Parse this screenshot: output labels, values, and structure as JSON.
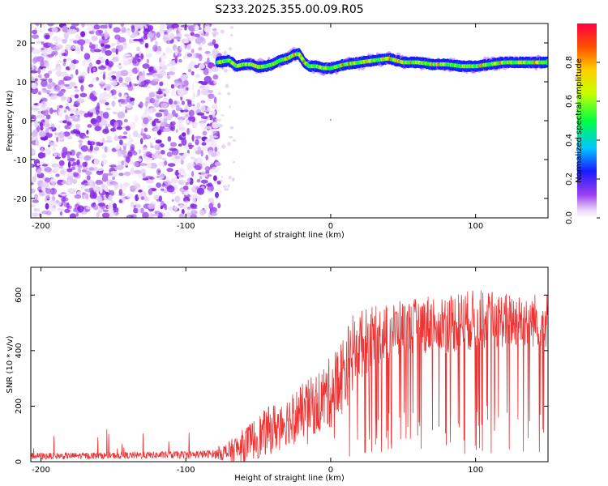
{
  "chart_data": [
    {
      "type": "heatmap",
      "title": "S233.2025.355.00.09.R05",
      "xlabel": "Height of straight line (km)",
      "ylabel": "Frequency (Hz)",
      "xlim": [
        -207,
        150
      ],
      "ylim": [
        -25,
        25
      ],
      "xticks": [
        -200,
        -100,
        0,
        100
      ],
      "yticks": [
        -20,
        -10,
        0,
        10,
        20
      ],
      "xtick_labels": [
        "-200",
        "-100",
        "0",
        "100"
      ],
      "ytick_labels": [
        "-20",
        "-10",
        "0",
        "10",
        "20"
      ],
      "noise_region_x": [
        -207,
        -77
      ],
      "signal_start_x": -78,
      "ridge": {
        "x": [
          -78,
          -70,
          -65,
          -60,
          -55,
          -50,
          -45,
          -40,
          -35,
          -30,
          -25,
          -22,
          -18,
          -15,
          -10,
          -5,
          0,
          5,
          10,
          20,
          30,
          40,
          50,
          60,
          70,
          80,
          90,
          100,
          110,
          120,
          130,
          140,
          150
        ],
        "frequency": [
          15,
          15.5,
          14,
          14.5,
          14.5,
          13.8,
          14,
          14.5,
          15.5,
          16,
          17,
          17.2,
          15,
          14,
          14,
          13.5,
          13.5,
          14,
          14.5,
          15,
          15.5,
          16,
          15,
          15,
          14.5,
          14.5,
          14,
          14,
          14.5,
          15,
          15,
          15,
          15
        ]
      },
      "colorbar": {
        "label": "Normalized spectral amplitude",
        "range": [
          0.0,
          1.0
        ],
        "ticks": [
          "0.0",
          "0.2",
          "0.4",
          "0.6",
          "0.8"
        ]
      }
    },
    {
      "type": "line",
      "xlabel": "Height of straight line (km)",
      "ylabel": "SNR (10 * v/v)",
      "xlim": [
        -207,
        150
      ],
      "ylim": [
        0,
        700
      ],
      "xticks": [
        -200,
        -100,
        0,
        100
      ],
      "yticks": [
        0,
        200,
        400,
        600
      ],
      "xtick_labels": [
        "-200",
        "-100",
        "0",
        "100"
      ],
      "ytick_labels": [
        "0",
        "200",
        "400",
        "600"
      ],
      "color": "#ee3333",
      "envelope": {
        "x": [
          -207,
          -150,
          -100,
          -80,
          -70,
          -60,
          -50,
          -40,
          -30,
          -20,
          -10,
          0,
          10,
          15,
          20,
          30,
          40,
          50,
          60,
          70,
          80,
          100,
          120,
          150
        ],
        "base": [
          20,
          22,
          25,
          28,
          35,
          60,
          90,
          120,
          150,
          180,
          210,
          250,
          330,
          380,
          420,
          450,
          470,
          480,
          490,
          500,
          500,
          510,
          510,
          510
        ],
        "spread": [
          12,
          12,
          14,
          15,
          40,
          60,
          80,
          90,
          90,
          100,
          110,
          130,
          150,
          150,
          130,
          110,
          100,
          100,
          100,
          110,
          110,
          110,
          100,
          100
        ]
      }
    }
  ]
}
